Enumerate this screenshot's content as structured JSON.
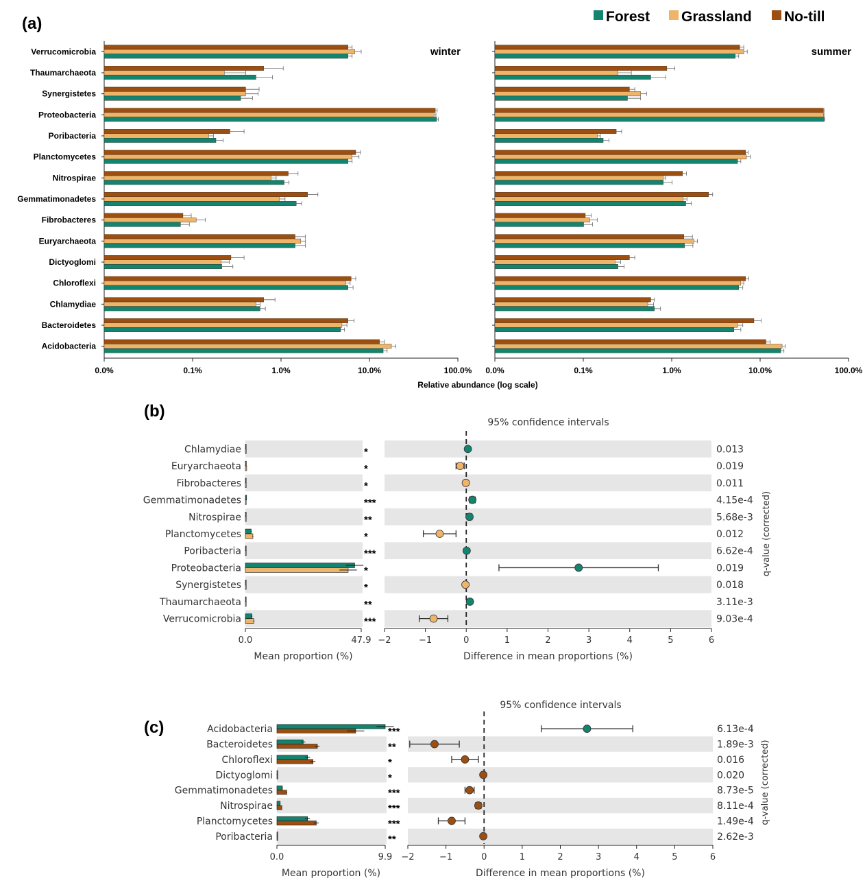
{
  "colors": {
    "forest": "#138470",
    "grassland": "#eeb469",
    "notill": "#9c4f10",
    "band": "#e6e6e6",
    "axis": "#222222",
    "errbar": "#666666"
  },
  "legend": [
    {
      "name": "Forest",
      "color": "#138470"
    },
    {
      "name": "Grassland",
      "color": "#eeb469"
    },
    {
      "name": "No-till",
      "color": "#9c4f10"
    }
  ],
  "chart_data": [
    {
      "panel": "(a)",
      "type": "bar",
      "orientation": "horizontal",
      "xscale": "log",
      "xlabel": "Relative abundance (log scale)",
      "xticks": [
        "0.0%",
        "0.1%",
        "1.0%",
        "10.0%",
        "100.0%"
      ],
      "facets": [
        {
          "title": "winter",
          "categories": [
            "Verrucomicrobia",
            "Thaumarchaeota",
            "Synergistetes",
            "Proteobacteria",
            "Poribacteria",
            "Planctomycetes",
            "Nitrospirae",
            "Gemmatimonadetes",
            "Fibrobacteres",
            "Euryarchaeota",
            "Dictyoglomi",
            "Chloroflexi",
            "Chlamydiae",
            "Bacteroidetes",
            "Acidobacteria"
          ],
          "series": [
            {
              "name": "No-till",
              "values": [
                2.8,
                0.18,
                0.1,
                48,
                0.06,
                3.6,
                0.4,
                0.75,
                0.013,
                0.5,
                0.062,
                3.1,
                0.18,
                2.8,
                7.8
              ],
              "err": [
                0.4,
                0.16,
                0.055,
                3,
                0.035,
                0.6,
                0.15,
                0.3,
                0.004,
                0.2,
                0.033,
                0.5,
                0.08,
                0.6,
                1.3
              ]
            },
            {
              "name": "Grassland",
              "values": [
                3.5,
                0.05,
                0.1,
                46,
                0.03,
                3.2,
                0.23,
                0.3,
                0.02,
                0.6,
                0.045,
                2.6,
                0.14,
                2.3,
                11.5
              ],
              "err": [
                0.8,
                0.05,
                0.05,
                3,
                0.005,
                0.8,
                0.04,
                0.06,
                0.007,
                0.1,
                0.014,
                0.4,
                0.02,
                0.4,
                1.8
              ]
            },
            {
              "name": "Forest",
              "values": [
                2.8,
                0.14,
                0.085,
                50,
                0.038,
                2.8,
                0.35,
                0.52,
                0.012,
                0.5,
                0.046,
                2.8,
                0.16,
                2.2,
                8.8
              ],
              "err": [
                0.4,
                0.1,
                0.04,
                3,
                0.01,
                0.4,
                0.06,
                0.1,
                0.004,
                0.2,
                0.02,
                0.5,
                0.03,
                0.3,
                1.2
              ]
            }
          ]
        },
        {
          "title": "summer",
          "categories": [
            "Verrucomicrobia",
            "Thaumarchaeota",
            "Synergistetes",
            "Proteobacteria",
            "Poribacteria",
            "Planctomycetes",
            "Nitrospirae",
            "Gemmatimonadetes",
            "Fibrobacteres",
            "Euryarchaeota",
            "Dictyoglomi",
            "Chloroflexi",
            "Chlamydiae",
            "Bacteroidetes",
            "Acidobacteria"
          ],
          "series": [
            {
              "name": "No-till",
              "values": [
                2.9,
                0.27,
                0.08,
                44,
                0.052,
                3.5,
                0.45,
                1.05,
                0.019,
                0.47,
                0.08,
                3.5,
                0.16,
                4.6,
                6.8
              ],
              "err": [
                0.4,
                0.08,
                0.015,
                1,
                0.01,
                0.3,
                0.06,
                0.15,
                0.004,
                0.15,
                0.015,
                0.4,
                0.02,
                1.2,
                1
              ]
            },
            {
              "name": "Grassland",
              "values": [
                3.3,
                0.055,
                0.115,
                44,
                0.028,
                3.6,
                0.24,
                0.46,
                0.022,
                0.65,
                0.05,
                3,
                0.145,
                2.7,
                11.5
              ],
              "err": [
                0.4,
                0.03,
                0.025,
                1,
                0.003,
                0.5,
                0.02,
                0.06,
                0.006,
                0.08,
                0.01,
                0.3,
                0.03,
                0.5,
                1.2
              ]
            },
            {
              "name": "Forest",
              "values": [
                2.5,
                0.16,
                0.075,
                45,
                0.034,
                2.7,
                0.24,
                0.5,
                0.018,
                0.48,
                0.055,
                2.8,
                0.18,
                2.4,
                11
              ],
              "err": [
                0.3,
                0.1,
                0.04,
                1,
                0.007,
                0.3,
                0.08,
                0.1,
                0.006,
                0.15,
                0.012,
                0.4,
                0.04,
                0.6,
                1.2
              ]
            }
          ]
        }
      ]
    },
    {
      "panel": "(b)",
      "type": "extended-error-bar",
      "ci_title": "95% confidence intervals",
      "xlabel_left": "Mean proportion (%)",
      "xlabel_right": "Difference in mean proportions (%)",
      "ylabel_right": "q-value (corrected)",
      "left_range": [
        0,
        47.9
      ],
      "left_ticks": [
        "0.0",
        "47.9"
      ],
      "right_range": [
        -2,
        6
      ],
      "right_ticks": [
        "−2",
        "−1",
        "0",
        "1",
        "2",
        "3",
        "4",
        "5",
        "6"
      ],
      "colors": [
        "#138470",
        "#eeb469"
      ],
      "rows": [
        {
          "name": "Chlamydiae",
          "m1": 0.17,
          "m2": 0.13,
          "diff": 0.04,
          "lo": 0.0,
          "hi": 0.08,
          "sig": "*",
          "q": "0.013"
        },
        {
          "name": "Euryarchaeota",
          "m1": 0.4,
          "m2": 0.55,
          "diff": -0.15,
          "lo": -0.25,
          "hi": -0.05,
          "sig": "*",
          "q": "0.019"
        },
        {
          "name": "Fibrobacteres",
          "m1": 0.02,
          "m2": 0.03,
          "diff": -0.01,
          "lo": -0.02,
          "hi": 0.0,
          "sig": "*",
          "q": "0.011"
        },
        {
          "name": "Gemmatimonadetes",
          "m1": 0.5,
          "m2": 0.3,
          "diff": 0.15,
          "lo": 0.08,
          "hi": 0.22,
          "sig": "***",
          "q": "4.15e-4"
        },
        {
          "name": "Nitrospirae",
          "m1": 0.35,
          "m2": 0.25,
          "diff": 0.08,
          "lo": 0.02,
          "hi": 0.14,
          "sig": "**",
          "q": "5.68e-3"
        },
        {
          "name": "Planctomycetes",
          "m1": 2.4,
          "m2": 3.1,
          "diff": -0.65,
          "lo": -1.05,
          "hi": -0.25,
          "sig": "*",
          "q": "0.012"
        },
        {
          "name": "Poribacteria",
          "m1": 0.04,
          "m2": 0.03,
          "diff": 0.01,
          "lo": 0.0,
          "hi": 0.02,
          "sig": "***",
          "q": "6.62e-4"
        },
        {
          "name": "Proteobacteria",
          "m1": 45.2,
          "m2": 42.5,
          "diff": 2.75,
          "lo": 0.8,
          "hi": 4.7,
          "sig": "*",
          "q": "0.019"
        },
        {
          "name": "Synergistetes",
          "m1": 0.08,
          "m2": 0.1,
          "diff": -0.02,
          "lo": -0.04,
          "hi": 0.0,
          "sig": "*",
          "q": "0.018"
        },
        {
          "name": "Thaumarchaeota",
          "m1": 0.14,
          "m2": 0.05,
          "diff": 0.09,
          "lo": 0.05,
          "hi": 0.13,
          "sig": "**",
          "q": "3.11e-3"
        },
        {
          "name": "Verrucomicrobia",
          "m1": 2.7,
          "m2": 3.5,
          "diff": -0.8,
          "lo": -1.15,
          "hi": -0.45,
          "sig": "***",
          "q": "9.03e-4"
        }
      ]
    },
    {
      "panel": "(c)",
      "type": "extended-error-bar",
      "ci_title": "95% confidence intervals",
      "xlabel_left": "Mean proportion (%)",
      "xlabel_right": "Difference in mean proportions (%)",
      "ylabel_right": "q-value (corrected)",
      "left_range": [
        0,
        9.9
      ],
      "left_ticks": [
        "0.0",
        "9.9"
      ],
      "right_range": [
        -2,
        6
      ],
      "right_ticks": [
        "−2",
        "−1",
        "0",
        "1",
        "2",
        "3",
        "4",
        "5",
        "6"
      ],
      "colors": [
        "#138470",
        "#9c4f10"
      ],
      "rows": [
        {
          "name": "Acidobacteria",
          "m1": 9.9,
          "m2": 7.2,
          "diff": 2.7,
          "lo": 1.5,
          "hi": 3.9,
          "sig": "***",
          "q": "6.13e-4"
        },
        {
          "name": "Bacteroidetes",
          "m1": 2.4,
          "m2": 3.7,
          "diff": -1.3,
          "lo": -1.95,
          "hi": -0.65,
          "sig": "**",
          "q": "1.89e-3"
        },
        {
          "name": "Chloroflexi",
          "m1": 2.8,
          "m2": 3.3,
          "diff": -0.5,
          "lo": -0.85,
          "hi": -0.15,
          "sig": "*",
          "q": "0.016"
        },
        {
          "name": "Dictyoglomi",
          "m1": 0.05,
          "m2": 0.07,
          "diff": -0.02,
          "lo": -0.04,
          "hi": 0.0,
          "sig": "*",
          "q": "0.020"
        },
        {
          "name": "Gemmatimonadetes",
          "m1": 0.5,
          "m2": 0.9,
          "diff": -0.38,
          "lo": -0.5,
          "hi": -0.26,
          "sig": "***",
          "q": "8.73e-5"
        },
        {
          "name": "Nitrospirae",
          "m1": 0.3,
          "m2": 0.45,
          "diff": -0.15,
          "lo": -0.22,
          "hi": -0.08,
          "sig": "***",
          "q": "8.11e-4"
        },
        {
          "name": "Planctomycetes",
          "m1": 2.8,
          "m2": 3.6,
          "diff": -0.85,
          "lo": -1.2,
          "hi": -0.5,
          "sig": "***",
          "q": "1.49e-4"
        },
        {
          "name": "Poribacteria",
          "m1": 0.03,
          "m2": 0.05,
          "diff": -0.02,
          "lo": -0.035,
          "hi": -0.005,
          "sig": "**",
          "q": "2.62e-3"
        }
      ]
    }
  ]
}
